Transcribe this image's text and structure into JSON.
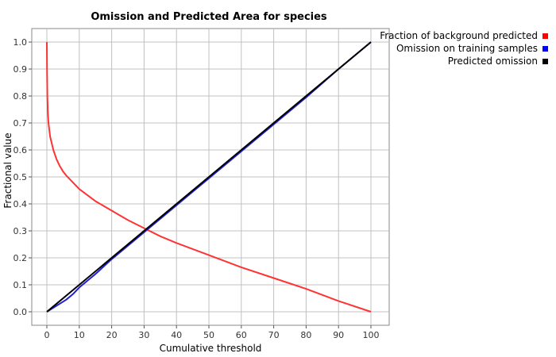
{
  "chart_data": {
    "type": "line",
    "title": "Omission and Predicted Area for species",
    "xlabel": "Cumulative threshold",
    "ylabel": "Fractional value",
    "xlim": [
      0,
      100
    ],
    "ylim": [
      0,
      1.0
    ],
    "xticks": [
      0,
      10,
      20,
      30,
      40,
      50,
      60,
      70,
      80,
      90,
      100
    ],
    "yticks": [
      0.0,
      0.1,
      0.2,
      0.3,
      0.4,
      0.5,
      0.6,
      0.7,
      0.8,
      0.9,
      1.0
    ],
    "ytick_labels": [
      "0.0",
      "0.1",
      "0.2",
      "0.3",
      "0.4",
      "0.5",
      "0.6",
      "0.7",
      "0.8",
      "0.9",
      "1.0"
    ],
    "grid": true,
    "legend_position": "right, top",
    "series": [
      {
        "name": "Fraction of background predicted",
        "color": "#ff3333",
        "x": [
          0,
          0.05,
          0.15,
          0.3,
          0.5,
          1,
          2,
          3,
          4,
          5,
          6,
          8,
          10,
          15,
          20,
          25,
          30,
          35,
          40,
          50,
          60,
          70,
          80,
          90,
          100
        ],
        "y": [
          1.0,
          0.9,
          0.8,
          0.74,
          0.7,
          0.65,
          0.6,
          0.565,
          0.54,
          0.52,
          0.505,
          0.48,
          0.455,
          0.41,
          0.375,
          0.34,
          0.31,
          0.28,
          0.255,
          0.21,
          0.165,
          0.125,
          0.085,
          0.04,
          0.0
        ]
      },
      {
        "name": "Omission on training samples",
        "color": "#1f1fd6",
        "x": [
          0,
          2,
          4,
          6,
          8,
          10,
          15,
          20,
          25,
          30,
          35,
          40,
          50,
          60,
          70,
          80,
          90,
          100
        ],
        "y": [
          0,
          0.015,
          0.03,
          0.045,
          0.065,
          0.09,
          0.14,
          0.195,
          0.245,
          0.295,
          0.345,
          0.395,
          0.495,
          0.595,
          0.695,
          0.795,
          0.9,
          1.0
        ]
      },
      {
        "name": "Predicted omission",
        "color": "#000000",
        "x": [
          0,
          100
        ],
        "y": [
          0,
          1.0
        ]
      }
    ]
  }
}
